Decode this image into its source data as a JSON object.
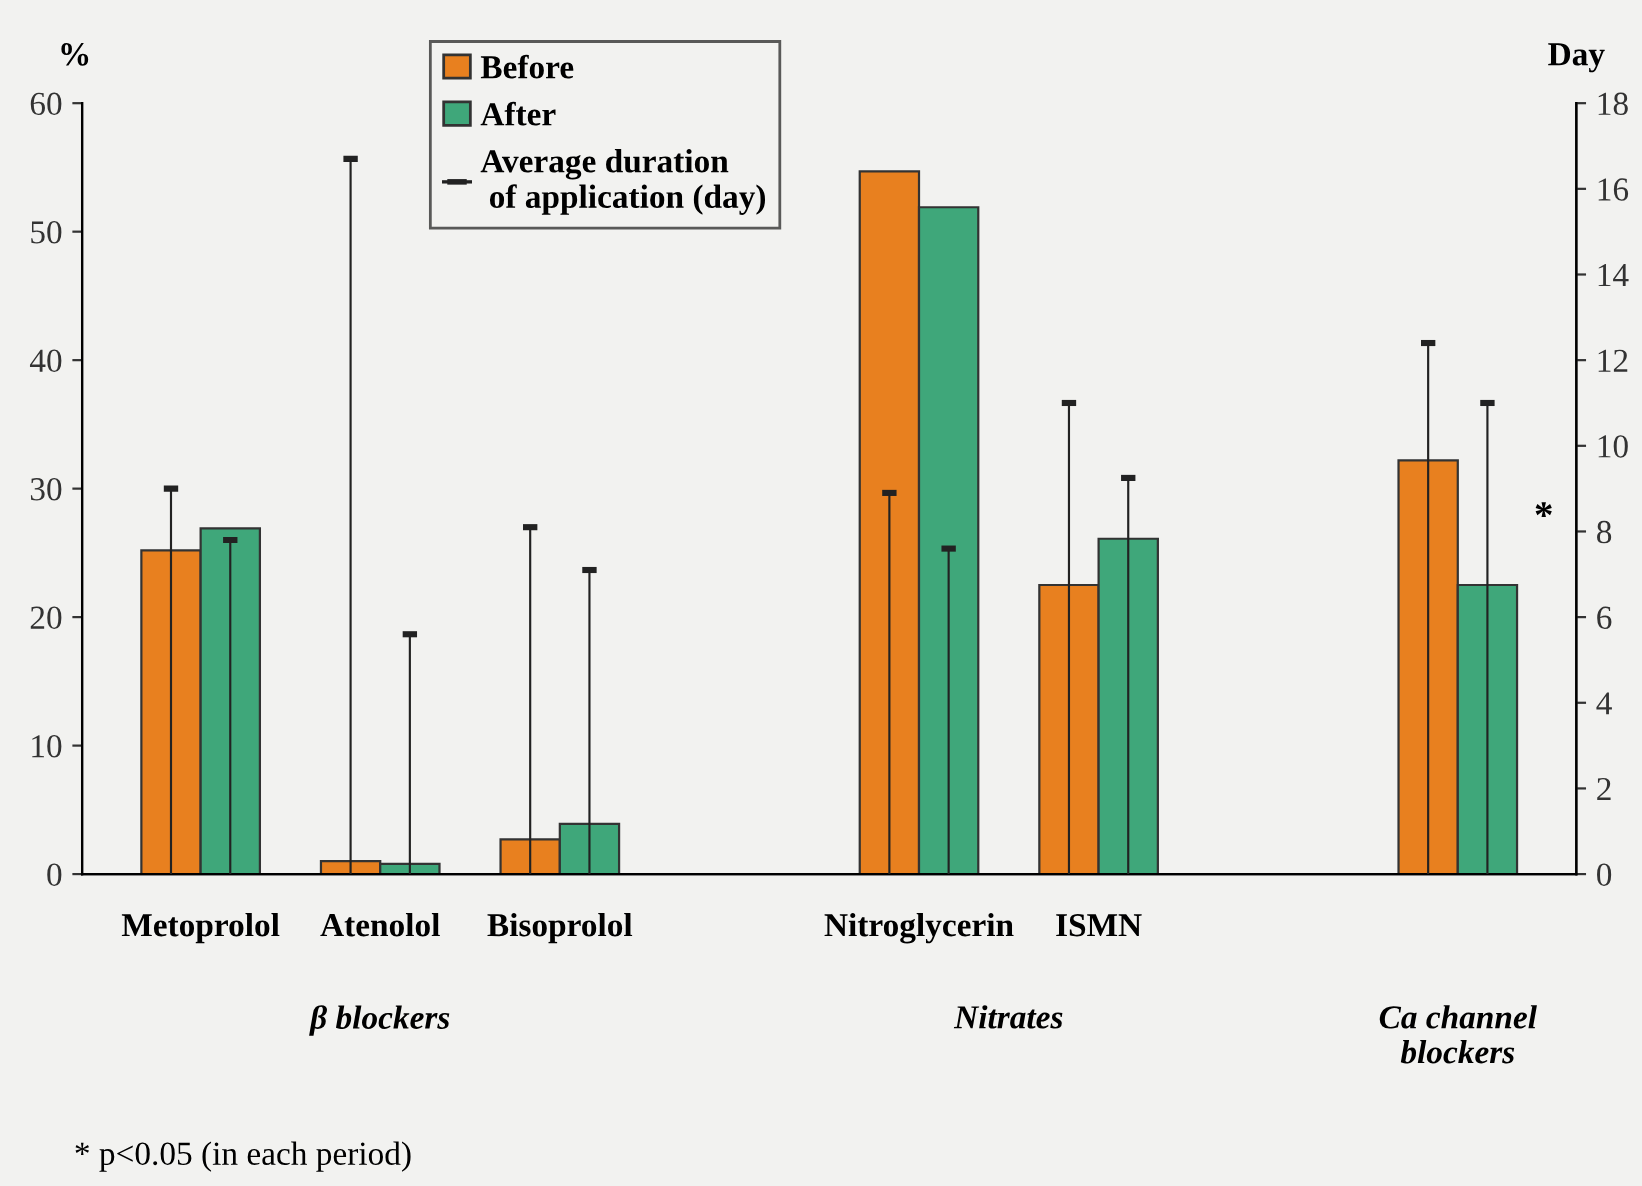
{
  "chart_data": {
    "type": "bar",
    "categories": [
      "Metoprolol",
      "Atenolol",
      "Bisoprolol",
      null,
      "Nitroglycerin",
      "ISMN",
      null,
      null
    ],
    "series": [
      {
        "name": "Before",
        "color": "#e8801f",
        "values": [
          25.2,
          1.0,
          2.7,
          null,
          54.7,
          22.5,
          null,
          32.2
        ]
      },
      {
        "name": "After",
        "color": "#3fa77a",
        "values": [
          26.9,
          0.8,
          3.9,
          null,
          51.9,
          26.1,
          null,
          22.5
        ]
      },
      {
        "name": "Average duration\n of application (day)",
        "type": "bar",
        "axis": "y2",
        "color": "#222222",
        "values": [
          9.0,
          16.7,
          8.1,
          null,
          8.9,
          11.0,
          null,
          12.4
        ]
      },
      {
        "type": "bar",
        "axis": "y2",
        "color": "#222222",
        "values": [
          7.8,
          5.6,
          7.1,
          null,
          7.6,
          9.25,
          null,
          11.0
        ]
      }
    ],
    "ylabel": "%",
    "y2label": "Day",
    "ylim": [
      0,
      60
    ],
    "yticks": [
      0,
      10,
      20,
      30,
      40,
      50,
      60
    ],
    "y2lim": [
      0,
      18
    ],
    "y2ticks": [
      0,
      2,
      4,
      6,
      8,
      10,
      12,
      14,
      16,
      18
    ],
    "annotations": [
      "β blockers",
      "Nitrates",
      "Ca channel\nblockers",
      "*",
      "* p<0.05 (in each period)"
    ],
    "legend": "top",
    "grid": false
  }
}
